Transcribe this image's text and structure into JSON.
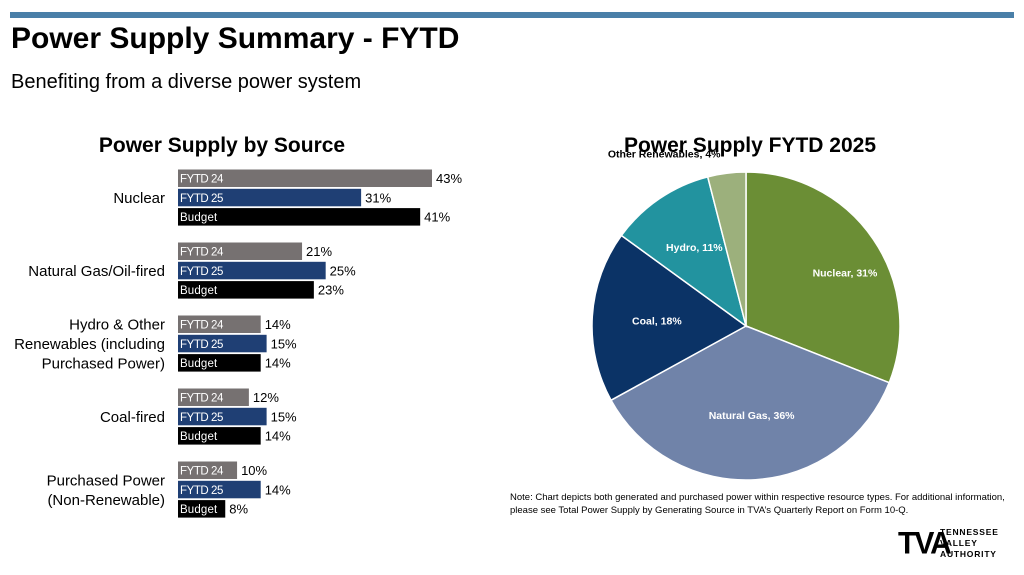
{
  "header": {
    "title": "Power Supply Summary - FYTD",
    "subtitle": "Benefiting from a diverse power system"
  },
  "chart_data": [
    {
      "type": "bar",
      "orientation": "horizontal",
      "title": "Power Supply by Source",
      "categories": [
        [
          "Nuclear"
        ],
        [
          "Natural Gas/Oil-fired"
        ],
        [
          "Hydro & Other",
          "Renewables (including",
          "Purchased Power)"
        ],
        [
          "Coal-fired"
        ],
        [
          "Purchased Power",
          "(Non-Renewable)"
        ]
      ],
      "series": [
        {
          "name": "FYTD 24",
          "color": "#767171",
          "values": [
            43,
            21,
            14,
            12,
            10
          ],
          "labels": [
            "43%",
            "21%",
            "14%",
            "12%",
            "10%"
          ]
        },
        {
          "name": "FYTD 25",
          "color": "#1f3f74",
          "values": [
            31,
            25,
            15,
            15,
            14
          ],
          "labels": [
            "31%",
            "25%",
            "15%",
            "15%",
            "14%"
          ]
        },
        {
          "name": "Budget",
          "color": "#000000",
          "values": [
            41,
            23,
            14,
            14,
            8
          ],
          "labels": [
            "41%",
            "23%",
            "14%",
            "14%",
            "8%"
          ]
        }
      ],
      "unit": "%"
    },
    {
      "type": "pie",
      "title": "Power Supply FYTD 2025",
      "slices": [
        {
          "label": "Nuclear, 31%",
          "value": 31,
          "color": "#6b8e35"
        },
        {
          "label": "Natural Gas, 36%",
          "value": 36,
          "color": "#7083a9"
        },
        {
          "label": "Coal, 18%",
          "value": 18,
          "color": "#0b3366"
        },
        {
          "label": "Hydro, 11%",
          "value": 11,
          "color": "#22939f"
        },
        {
          "label": "Other Renewables, 4%",
          "value": 4,
          "color": "#9cb07c"
        }
      ]
    }
  ],
  "note": "Note: Chart depicts both generated and purchased power within respective resource types. For additional information, please see Total Power Supply by Generating Source in TVA’s Quarterly Report on Form 10-Q.",
  "logo": {
    "mark": "TVA",
    "lines": [
      "TENNESSEE",
      "VALLEY",
      "AUTHORITY"
    ]
  }
}
